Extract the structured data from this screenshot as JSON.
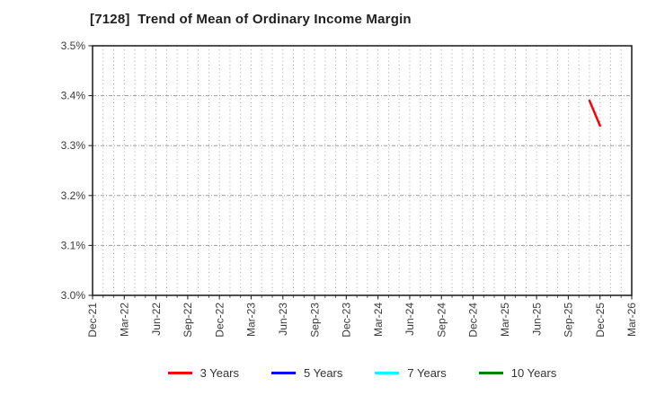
{
  "title": "[7128]  Trend of Mean of Ordinary Income Margin",
  "chart_data": {
    "type": "line",
    "title": "[7128]  Trend of Mean of Ordinary Income Margin",
    "xlabel": "",
    "ylabel": "",
    "ylim": [
      3.0,
      3.5
    ],
    "y_ticks": [
      "3.0%",
      "3.1%",
      "3.2%",
      "3.3%",
      "3.4%",
      "3.5%"
    ],
    "x_ticks": [
      "Dec-21",
      "Mar-22",
      "Jun-22",
      "Sep-22",
      "Dec-22",
      "Mar-23",
      "Jun-23",
      "Sep-23",
      "Dec-23",
      "Mar-24",
      "Jun-24",
      "Sep-24",
      "Dec-24",
      "Mar-25",
      "Jun-25",
      "Sep-25",
      "Dec-25",
      "Mar-26"
    ],
    "x_months_total": 51,
    "months_per_tick": 3,
    "grid": true,
    "legend_position": "bottom",
    "series": [
      {
        "name": "3 Years",
        "color": "#ff0000",
        "points": [
          {
            "x_label": "Nov-25",
            "month": 47,
            "value": 3.39
          },
          {
            "x_label": "Dec-25",
            "month": 48,
            "value": 3.34
          }
        ]
      },
      {
        "name": "5 Years",
        "color": "#0000ff",
        "points": []
      },
      {
        "name": "7 Years",
        "color": "#00ffff",
        "points": []
      },
      {
        "name": "10 Years",
        "color": "#008000",
        "points": []
      }
    ],
    "style": {
      "frame_color": "#262626",
      "grid_color": "#9b9b9b",
      "tick_label_color": "#3a3a3a",
      "background": "#ffffff"
    }
  }
}
